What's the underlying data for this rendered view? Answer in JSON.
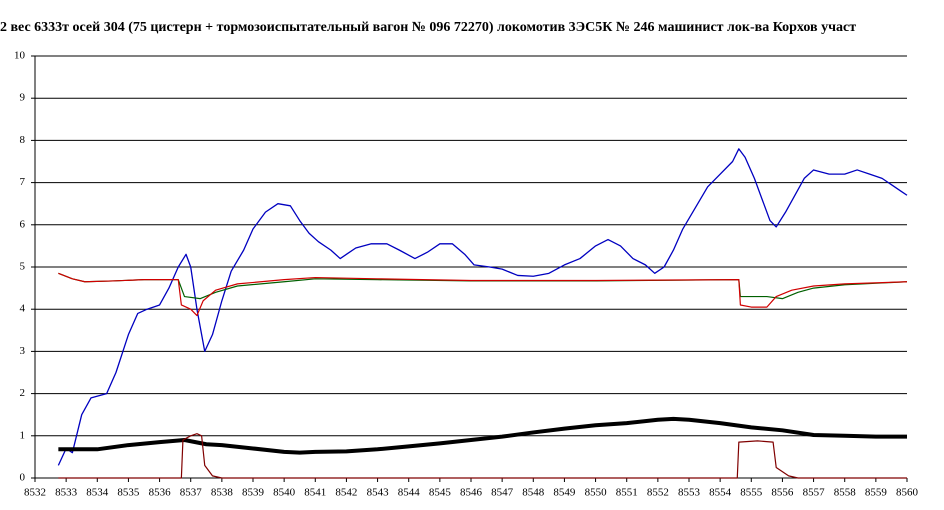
{
  "chart_data": {
    "type": "line",
    "title": "2 вес 6333т осей 304 (75 цистерн + тормозоиспытательный вагон № 096 72270) локомотив 3ЭС5К № 246 машинист лок-ва Корхов участ",
    "xlim": [
      8532,
      8560
    ],
    "xticks": [
      8532,
      8533,
      8534,
      8535,
      8536,
      8537,
      8538,
      8539,
      8540,
      8541,
      8542,
      8543,
      8544,
      8545,
      8546,
      8547,
      8548,
      8549,
      8550,
      8551,
      8552,
      8553,
      8554,
      8555,
      8556,
      8557,
      8558,
      8559,
      8560
    ],
    "ylim": [
      0,
      10
    ],
    "yticks": [
      0,
      1,
      2,
      3,
      4,
      5,
      6,
      7,
      8,
      9,
      10
    ],
    "grid": true,
    "series": [
      {
        "color": "#0000c0",
        "line_width": 1.3,
        "x": [
          8532.75,
          8533.0,
          8533.2,
          8533.5,
          8533.8,
          8534.3,
          8534.6,
          8535.0,
          8535.3,
          8535.6,
          8536.0,
          8536.3,
          8536.6,
          8536.85,
          8537.0,
          8537.2,
          8537.45,
          8537.7,
          8538.0,
          8538.3,
          8538.7,
          8539.0,
          8539.4,
          8539.8,
          8540.2,
          8540.5,
          8540.8,
          8541.1,
          8541.5,
          8541.8,
          8542.0,
          8542.3,
          8542.8,
          8543.3,
          8543.7,
          8544.2,
          8544.6,
          8545.0,
          8545.4,
          8545.8,
          8546.1,
          8546.6,
          8547.0,
          8547.5,
          8548.0,
          8548.5,
          8549.0,
          8549.5,
          8550.0,
          8550.4,
          8550.8,
          8551.2,
          8551.6,
          8551.9,
          8552.2,
          8552.5,
          8552.8,
          8553.2,
          8553.6,
          8554.0,
          8554.4,
          8554.6,
          8554.8,
          8555.1,
          8555.4,
          8555.6,
          8555.8,
          8556.1,
          8556.4,
          8556.7,
          8557.0,
          8557.5,
          8558.0,
          8558.4,
          8558.8,
          8559.2,
          8559.6,
          8559.8,
          8560.0
        ],
        "values": [
          0.3,
          0.7,
          0.6,
          1.5,
          1.9,
          2.0,
          2.5,
          3.4,
          3.9,
          4.0,
          4.1,
          4.5,
          5.0,
          5.3,
          5.0,
          4.0,
          3.0,
          3.4,
          4.2,
          4.9,
          5.4,
          5.9,
          6.3,
          6.5,
          6.45,
          6.1,
          5.8,
          5.6,
          5.4,
          5.2,
          5.3,
          5.45,
          5.55,
          5.55,
          5.4,
          5.2,
          5.35,
          5.55,
          5.55,
          5.3,
          5.05,
          5.0,
          4.95,
          4.8,
          4.78,
          4.85,
          5.05,
          5.2,
          5.5,
          5.65,
          5.5,
          5.2,
          5.05,
          4.85,
          5.0,
          5.4,
          5.9,
          6.4,
          6.9,
          7.2,
          7.5,
          7.8,
          7.6,
          7.1,
          6.5,
          6.1,
          5.95,
          6.3,
          6.7,
          7.1,
          7.3,
          7.2,
          7.2,
          7.3,
          7.2,
          7.1,
          6.9,
          6.8,
          6.7
        ]
      },
      {
        "color": "#006000",
        "line_width": 1.2,
        "x": [
          8532.75,
          8533.2,
          8533.6,
          8534.5,
          8535.5,
          8536.6,
          8536.8,
          8537.3,
          8537.8,
          8538.5,
          8540,
          8541,
          8543,
          8546,
          8550,
          8554.6,
          8554.65,
          8555.5,
          8556,
          8556.5,
          8557,
          8558,
          8560
        ],
        "values": [
          4.85,
          4.72,
          4.65,
          4.67,
          4.7,
          4.7,
          4.3,
          4.25,
          4.4,
          4.55,
          4.65,
          4.72,
          4.7,
          4.67,
          4.67,
          4.7,
          4.3,
          4.3,
          4.25,
          4.4,
          4.5,
          4.58,
          4.65
        ]
      },
      {
        "color": "#d00000",
        "line_width": 1.2,
        "x": [
          8532.75,
          8533.2,
          8533.6,
          8534.5,
          8535.5,
          8536.6,
          8536.7,
          8537.0,
          8537.2,
          8537.4,
          8537.8,
          8538.5,
          8540,
          8541,
          8543,
          8546,
          8550,
          8554.6,
          8554.65,
          8555,
          8555.5,
          8555.8,
          8556.3,
          8557,
          8558,
          8560
        ],
        "values": [
          4.85,
          4.72,
          4.65,
          4.67,
          4.7,
          4.7,
          4.1,
          4.0,
          3.85,
          4.2,
          4.45,
          4.6,
          4.7,
          4.75,
          4.72,
          4.68,
          4.68,
          4.7,
          4.1,
          4.05,
          4.05,
          4.3,
          4.45,
          4.55,
          4.6,
          4.65
        ]
      },
      {
        "color": "#000000",
        "line_width": 4,
        "x": [
          8532.75,
          8534,
          8535,
          8536,
          8536.8,
          8537.5,
          8538,
          8539,
          8540,
          8540.5,
          8541,
          8542,
          8543,
          8544,
          8545,
          8546,
          8547,
          8548,
          8549,
          8550,
          8551,
          8552,
          8552.5,
          8553,
          8554,
          8555,
          8556,
          8557,
          8558,
          8559,
          8560
        ],
        "values": [
          0.68,
          0.68,
          0.78,
          0.85,
          0.9,
          0.8,
          0.78,
          0.7,
          0.62,
          0.6,
          0.62,
          0.63,
          0.68,
          0.75,
          0.82,
          0.9,
          0.98,
          1.08,
          1.17,
          1.25,
          1.3,
          1.38,
          1.4,
          1.38,
          1.3,
          1.2,
          1.13,
          1.02,
          1.0,
          0.98,
          0.98
        ]
      },
      {
        "color": "#800000",
        "line_width": 1.2,
        "x": [
          8532.75,
          8536.7,
          8536.75,
          8537.0,
          8537.2,
          8537.35,
          8537.45,
          8537.7,
          8538,
          8554.55,
          8554.6,
          8555.2,
          8555.7,
          8555.8,
          8556.2,
          8556.5,
          8560
        ],
        "values": [
          0,
          0,
          0.9,
          1.0,
          1.05,
          1.0,
          0.3,
          0.05,
          0,
          0,
          0.85,
          0.88,
          0.85,
          0.25,
          0.05,
          0,
          0
        ]
      }
    ]
  }
}
